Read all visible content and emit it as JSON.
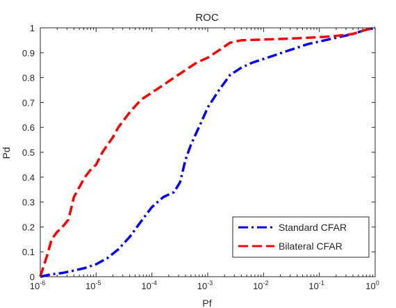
{
  "chart_data": {
    "type": "line",
    "title": "ROC",
    "xlabel": "Pf",
    "ylabel": "Pd",
    "xscale": "log",
    "xlim": [
      1e-06,
      1
    ],
    "ylim": [
      0,
      1
    ],
    "x_ticks": [
      {
        "value": 1e-06,
        "base": "10",
        "exp": "-6"
      },
      {
        "value": 1e-05,
        "base": "10",
        "exp": "-5"
      },
      {
        "value": 0.0001,
        "base": "10",
        "exp": "-4"
      },
      {
        "value": 0.001,
        "base": "10",
        "exp": "-3"
      },
      {
        "value": 0.01,
        "base": "10",
        "exp": "-2"
      },
      {
        "value": 0.1,
        "base": "10",
        "exp": "-1"
      },
      {
        "value": 1,
        "base": "10",
        "exp": "0"
      }
    ],
    "y_ticks": [
      "0",
      "0.1",
      "0.2",
      "0.3",
      "0.4",
      "0.5",
      "0.6",
      "0.7",
      "0.8",
      "0.9",
      "1"
    ],
    "grid": false,
    "legend_position": "bottom-right",
    "series": [
      {
        "name": "Standard CFAR",
        "color": "#0000ff",
        "style": "dash-dot",
        "x": [
          1e-06,
          1.6e-06,
          2.5e-06,
          4e-06,
          6.3e-06,
          1e-05,
          1.6e-05,
          2.5e-05,
          4e-05,
          6.3e-05,
          0.0001,
          0.00016,
          0.00025,
          0.00032,
          0.0004,
          0.0005,
          0.00063,
          0.0008,
          0.001,
          0.0016,
          0.0025,
          0.004,
          0.0063,
          0.01,
          0.016,
          0.025,
          0.04,
          0.063,
          0.1,
          0.16,
          0.25,
          0.4,
          0.63,
          1
        ],
        "y": [
          0,
          0.01,
          0.015,
          0.025,
          0.035,
          0.05,
          0.075,
          0.11,
          0.16,
          0.22,
          0.28,
          0.32,
          0.34,
          0.38,
          0.47,
          0.53,
          0.58,
          0.63,
          0.68,
          0.75,
          0.81,
          0.84,
          0.86,
          0.875,
          0.89,
          0.905,
          0.92,
          0.935,
          0.945,
          0.955,
          0.965,
          0.975,
          0.99,
          1
        ]
      },
      {
        "name": "Bilateral CFAR",
        "color": "#ff0000",
        "style": "dashed",
        "x": [
          1e-06,
          1.3e-06,
          1.6e-06,
          2e-06,
          2.5e-06,
          3.2e-06,
          4e-06,
          5e-06,
          6.3e-06,
          8e-06,
          1e-05,
          1.3e-05,
          1.6e-05,
          2e-05,
          2.5e-05,
          4e-05,
          6.3e-05,
          0.0001,
          0.00016,
          0.00025,
          0.0004,
          0.00063,
          0.001,
          0.0016,
          0.0025,
          0.004,
          0.01,
          0.025,
          0.063,
          0.16,
          0.4,
          0.63,
          1
        ],
        "y": [
          0,
          0.08,
          0.15,
          0.18,
          0.2,
          0.23,
          0.32,
          0.36,
          0.4,
          0.43,
          0.45,
          0.5,
          0.53,
          0.56,
          0.6,
          0.66,
          0.71,
          0.74,
          0.77,
          0.8,
          0.83,
          0.86,
          0.88,
          0.91,
          0.94,
          0.95,
          0.953,
          0.956,
          0.96,
          0.965,
          0.975,
          0.99,
          1
        ]
      }
    ]
  }
}
